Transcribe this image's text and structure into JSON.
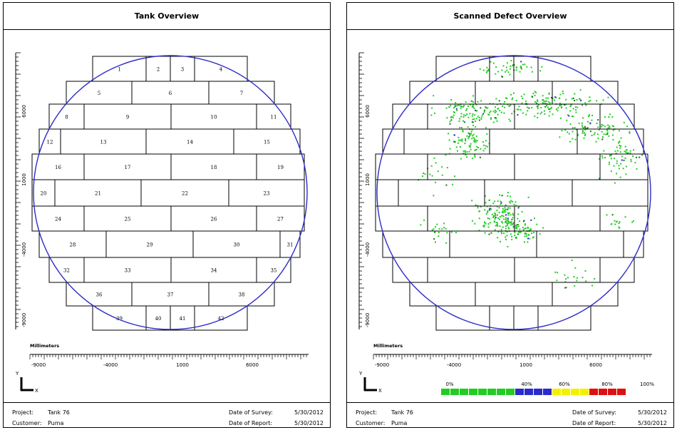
{
  "left_panel": {
    "title": "Tank Overview",
    "scale": {
      "ylabels": [
        "6000",
        "1000",
        "-4000",
        "-9000"
      ],
      "xlabels": [
        "-9000",
        "-4000",
        "1000",
        "6000"
      ],
      "axis_title": "Millimeters"
    },
    "axes": {
      "y": "Y",
      "x": "X"
    },
    "plates": [
      "1",
      "2",
      "3",
      "4",
      "5",
      "6",
      "7",
      "8",
      "9",
      "10",
      "11",
      "12",
      "13",
      "14",
      "15",
      "16",
      "17",
      "18",
      "19",
      "20",
      "21",
      "22",
      "23",
      "24",
      "25",
      "26",
      "27",
      "28",
      "29",
      "30",
      "31",
      "32",
      "33",
      "34",
      "35",
      "36",
      "37",
      "38",
      "39",
      "40",
      "41",
      "42"
    ],
    "footer": {
      "project_label": "Project:",
      "project_value": "Tank 76",
      "customer_label": "Customer:",
      "customer_value": "Puma",
      "survey_label": "Date of Survey:",
      "survey_value": "5/30/2012",
      "report_label": "Date of Report:",
      "report_value": "5/30/2012"
    }
  },
  "right_panel": {
    "title": "Scanned Defect Overview",
    "scale": {
      "ylabels": [
        "6000",
        "1000",
        "-4000",
        "-9000"
      ],
      "xlabels": [
        "-9000",
        "-4000",
        "1000",
        "6000"
      ],
      "axis_title": "Millimeters"
    },
    "axes": {
      "y": "Y",
      "x": "X"
    },
    "legend": {
      "labels": [
        "0%",
        "40%",
        "60%",
        "80%",
        "100%"
      ],
      "colors": [
        "#22cc22",
        "#2a2acc",
        "#f4f000",
        "#dd1111"
      ]
    },
    "footer": {
      "project_label": "Project:",
      "project_value": "Tank 76",
      "customer_label": "Customer:",
      "customer_value": "Puma",
      "survey_label": "Date of Survey:",
      "survey_value": "5/30/2012",
      "report_label": "Date of Report:",
      "report_value": "5/30/2012"
    }
  },
  "colors": {
    "tank_outline": "#2b2bc8",
    "defect": "#22cc22",
    "defect_dark": "#117711",
    "defect_blue": "#2a2acc"
  }
}
